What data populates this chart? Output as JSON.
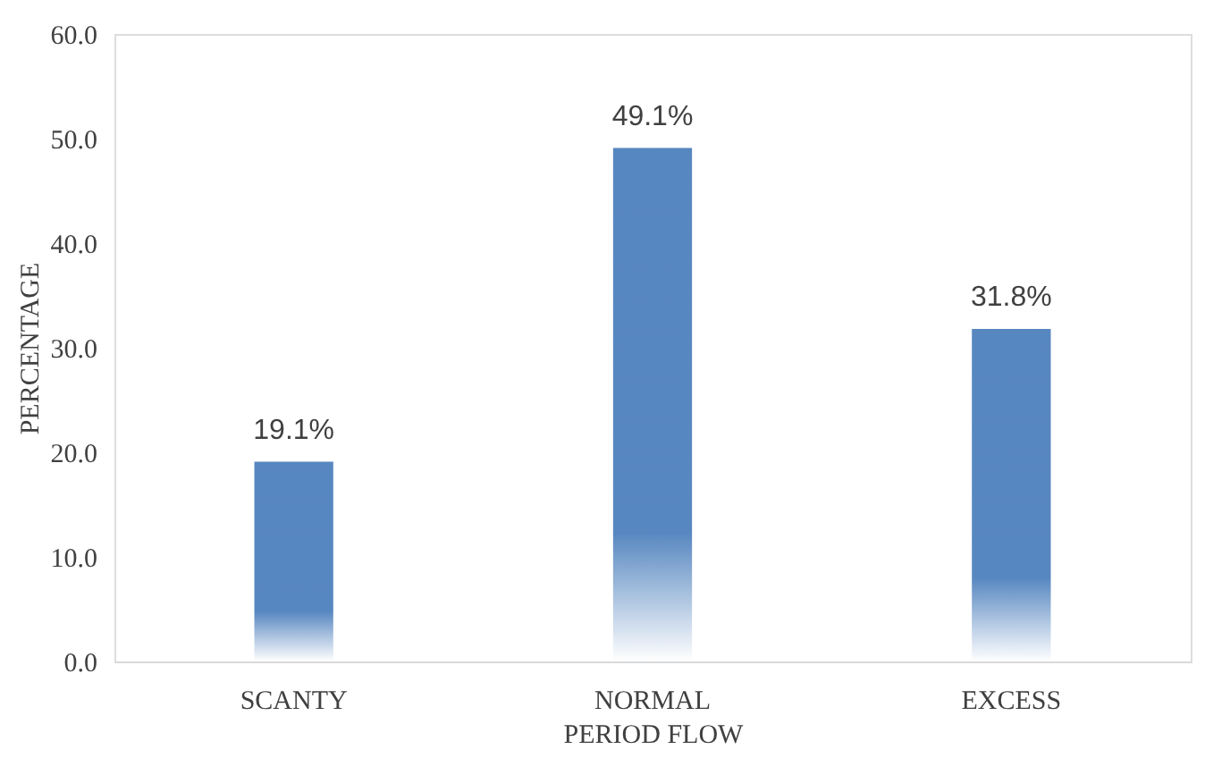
{
  "chart_data": {
    "type": "bar",
    "xlabel": "PERIOD FLOW",
    "ylabel": "PERCENTAGE",
    "categories": [
      "SCANTY",
      "NORMAL",
      "EXCESS"
    ],
    "values": [
      19.1,
      49.1,
      31.8
    ],
    "value_labels": [
      "19.1%",
      "49.1%",
      "31.8%"
    ],
    "color": "#4f81bd",
    "ylim": [
      0,
      60
    ],
    "yticks": [
      {
        "value": 0,
        "label": "0.0"
      },
      {
        "value": 10,
        "label": "10.0"
      },
      {
        "value": 20,
        "label": "20.0"
      },
      {
        "value": 30,
        "label": "30.0"
      },
      {
        "value": 40,
        "label": "40.0"
      },
      {
        "value": 50,
        "label": "50.0"
      },
      {
        "value": 60,
        "label": "60.0"
      }
    ],
    "grid": false
  }
}
